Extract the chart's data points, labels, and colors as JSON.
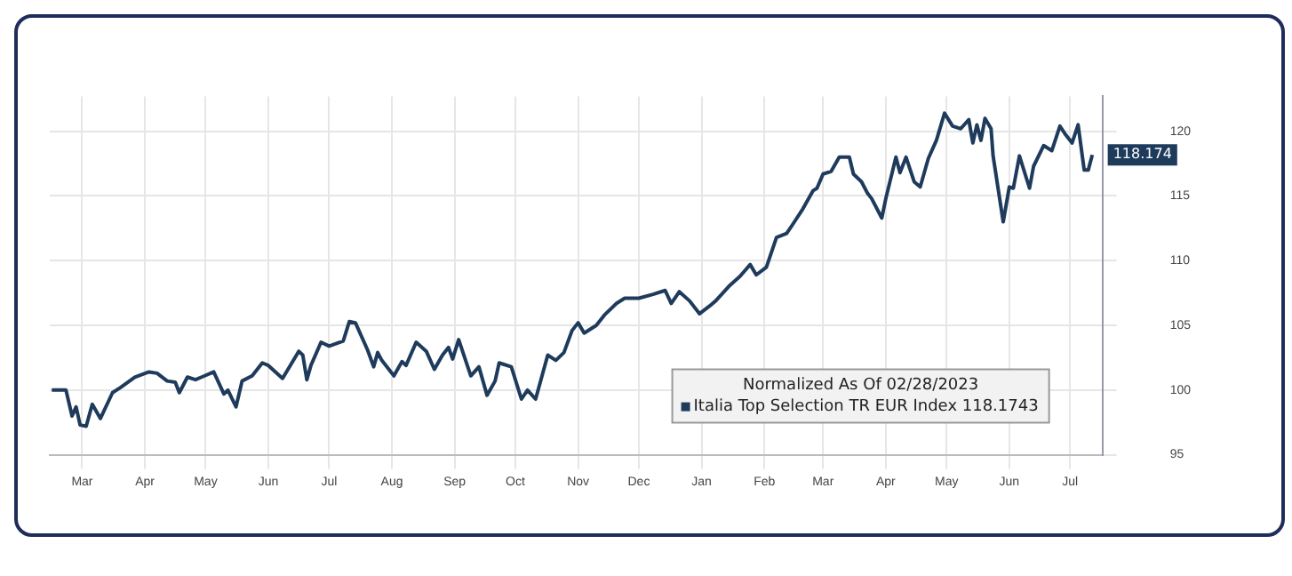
{
  "chart_data": {
    "type": "line",
    "legend_title": "Normalized As Of 02/28/2023",
    "legend": "bottom right",
    "grid": true,
    "marker": "none",
    "line_style": "solid",
    "xlim": [
      "2023-02-27",
      "2024-07-31"
    ],
    "xticks": [
      {
        "value": "2023-03-15",
        "label": "Mar"
      },
      {
        "value": "2023-04-15",
        "label": "Apr"
      },
      {
        "value": "2023-05-15",
        "label": "May"
      },
      {
        "value": "2023-06-15",
        "label": "Jun"
      },
      {
        "value": "2023-07-15",
        "label": "Jul"
      },
      {
        "value": "2023-08-15",
        "label": "Aug"
      },
      {
        "value": "2023-09-15",
        "label": "Sep"
      },
      {
        "value": "2023-10-15",
        "label": "Oct"
      },
      {
        "value": "2023-11-15",
        "label": "Nov"
      },
      {
        "value": "2023-12-15",
        "label": "Dec"
      },
      {
        "value": "2024-01-15",
        "label": "Jan"
      },
      {
        "value": "2024-02-15",
        "label": "Feb"
      },
      {
        "value": "2024-03-15",
        "label": "Mar"
      },
      {
        "value": "2024-04-15",
        "label": "Apr"
      },
      {
        "value": "2024-05-15",
        "label": "May"
      },
      {
        "value": "2024-06-15",
        "label": "Jun"
      },
      {
        "value": "2024-07-15",
        "label": "Jul"
      }
    ],
    "ylim": [
      95,
      122.7
    ],
    "yticks": [
      95,
      100,
      105,
      110,
      115,
      120
    ],
    "x": [
      "2023-02-28",
      "2023-03-07",
      "2023-03-10",
      "2023-03-12",
      "2023-03-14",
      "2023-03-17",
      "2023-03-20",
      "2023-03-24",
      "2023-03-30",
      "2023-04-03",
      "2023-04-10",
      "2023-04-17",
      "2023-04-21",
      "2023-04-26",
      "2023-04-30",
      "2023-05-02",
      "2023-05-06",
      "2023-05-10",
      "2023-05-13",
      "2023-05-19",
      "2023-05-24",
      "2023-05-26",
      "2023-05-30",
      "2023-06-02",
      "2023-06-07",
      "2023-06-12",
      "2023-06-15",
      "2023-06-22",
      "2023-06-30",
      "2023-07-02",
      "2023-07-04",
      "2023-07-06",
      "2023-07-11",
      "2023-07-15",
      "2023-07-22",
      "2023-07-25",
      "2023-07-28",
      "2023-08-03",
      "2023-08-06",
      "2023-08-08",
      "2023-08-10",
      "2023-08-16",
      "2023-08-20",
      "2023-08-22",
      "2023-08-27",
      "2023-09-01",
      "2023-09-05",
      "2023-09-09",
      "2023-09-12",
      "2023-09-14",
      "2023-09-17",
      "2023-09-23",
      "2023-09-27",
      "2023-10-01",
      "2023-10-05",
      "2023-10-07",
      "2023-10-13",
      "2023-10-18",
      "2023-10-21",
      "2023-10-25",
      "2023-10-31",
      "2023-11-04",
      "2023-11-08",
      "2023-11-12",
      "2023-11-15",
      "2023-11-18",
      "2023-11-24",
      "2023-11-28",
      "2023-12-04",
      "2023-12-08",
      "2023-12-15",
      "2023-12-22",
      "2023-12-28",
      "2023-12-31",
      "2024-01-04",
      "2024-01-09",
      "2024-01-14",
      "2024-01-19",
      "2024-01-22",
      "2024-01-29",
      "2024-02-03",
      "2024-02-08",
      "2024-02-11",
      "2024-02-16",
      "2024-02-21",
      "2024-02-26",
      "2024-02-29",
      "2024-03-05",
      "2024-03-10",
      "2024-03-12",
      "2024-03-15",
      "2024-03-19",
      "2024-03-23",
      "2024-03-28",
      "2024-03-30",
      "2024-04-03",
      "2024-04-06",
      "2024-04-08",
      "2024-04-13",
      "2024-04-15",
      "2024-04-20",
      "2024-04-22",
      "2024-04-25",
      "2024-04-29",
      "2024-05-02",
      "2024-05-06",
      "2024-05-10",
      "2024-05-14",
      "2024-05-18",
      "2024-05-22",
      "2024-05-26",
      "2024-05-28",
      "2024-05-30",
      "2024-06-01",
      "2024-06-03",
      "2024-06-06",
      "2024-06-07",
      "2024-06-12",
      "2024-06-15",
      "2024-06-17",
      "2024-06-20",
      "2024-06-25",
      "2024-06-27",
      "2024-07-02",
      "2024-07-06",
      "2024-07-10",
      "2024-07-13",
      "2024-07-16",
      "2024-07-19",
      "2024-07-22",
      "2024-07-24",
      "2024-07-26"
    ],
    "series": [
      {
        "name": "Italia Top Selection TR EUR Index 118.1743",
        "color": "#1f3b5c",
        "values": [
          100,
          100,
          98,
          98.7,
          97.3,
          97.2,
          98.9,
          97.8,
          99.8,
          100.2,
          101,
          101.4,
          101.3,
          100.7,
          100.6,
          99.8,
          101,
          100.8,
          101,
          101.4,
          99.7,
          100,
          98.7,
          100.7,
          101.1,
          102.1,
          101.9,
          100.9,
          103,
          102.7,
          100.8,
          101.9,
          103.7,
          103.4,
          103.8,
          105.3,
          105.2,
          103.1,
          101.8,
          102.9,
          102.3,
          101.1,
          102.2,
          101.9,
          103.7,
          103,
          101.6,
          102.7,
          103.3,
          102.4,
          103.9,
          101.1,
          101.8,
          99.6,
          100.7,
          102.1,
          101.8,
          99.3,
          100,
          99.3,
          102.7,
          102.3,
          102.9,
          104.6,
          105.2,
          104.4,
          105,
          105.8,
          106.7,
          107.1,
          107.1,
          107.4,
          107.7,
          106.7,
          107.6,
          106.9,
          105.9,
          106.5,
          106.9,
          108.1,
          108.8,
          109.7,
          108.9,
          109.5,
          111.8,
          112.1,
          112.8,
          114,
          115.4,
          115.6,
          116.7,
          116.9,
          118,
          118,
          116.7,
          116.1,
          115.2,
          114.8,
          113.3,
          114.8,
          118,
          116.8,
          118,
          116.1,
          115.7,
          117.9,
          119.3,
          121.4,
          120.4,
          120.2,
          120.9,
          119.1,
          120.5,
          119.3,
          121,
          120.2,
          118.1,
          113,
          115.7,
          115.6,
          118.1,
          115.6,
          117.3,
          118.9,
          118.5,
          120.4,
          119.7,
          119.1,
          120.5,
          117,
          117,
          118.174
        ],
        "value_labels": [
          null,
          null,
          null,
          null,
          null,
          null,
          null,
          null,
          null,
          null,
          null,
          null,
          null,
          null,
          null,
          null,
          null,
          null,
          null,
          null,
          null,
          null,
          null,
          null,
          null,
          null,
          null,
          null,
          null,
          null,
          null,
          null,
          null,
          null,
          null,
          null,
          null,
          null,
          null,
          null,
          null,
          null,
          null,
          null,
          null,
          null,
          null,
          null,
          null,
          null,
          null,
          null,
          null,
          null,
          null,
          null,
          null,
          null,
          null,
          null,
          null,
          null,
          null,
          null,
          null,
          null,
          null,
          null,
          null,
          null,
          null,
          null,
          null,
          null,
          null,
          null,
          null,
          null,
          null,
          null,
          null,
          null,
          null,
          null,
          null,
          null,
          null,
          null,
          null,
          null,
          null,
          null,
          null,
          null,
          null,
          null,
          null,
          null,
          null,
          null,
          null,
          null,
          null,
          null,
          null,
          null,
          null,
          null,
          null,
          null,
          null,
          null,
          null,
          null,
          null,
          null,
          null,
          null,
          null,
          null,
          null,
          null,
          null,
          null,
          null,
          null,
          null,
          null,
          null,
          null,
          null,
          "118.174"
        ]
      }
    ]
  }
}
